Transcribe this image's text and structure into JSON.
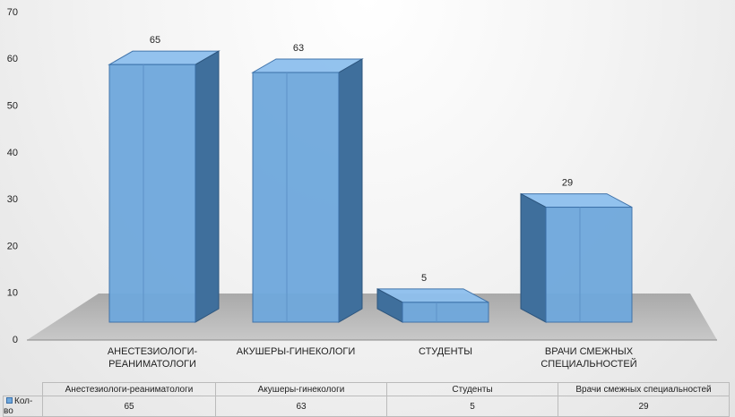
{
  "chart_data": {
    "type": "bar3d",
    "axis_labels": [
      "АНЕСТЕЗИОЛОГИ-РЕАНИМАТОЛОГИ",
      "АКУШЕРЫ-ГИНЕКОЛОГИ",
      "СТУДЕНТЫ",
      "ВРАЧИ СМЕЖНЫХ СПЕЦИАЛЬНОСТЕЙ"
    ],
    "categories": [
      "Анестезиологи-реаниматологи",
      "Акушеры-гинекологи",
      "Студенты",
      "Врачи смежных специальностей"
    ],
    "series": [
      {
        "name": "Кол-во",
        "color": "#6fa8dc",
        "values": [
          65,
          63,
          5,
          29
        ]
      }
    ],
    "ylim": [
      0,
      70
    ],
    "yticks": [
      0,
      10,
      20,
      30,
      40,
      50,
      60,
      70
    ],
    "grid": false
  }
}
